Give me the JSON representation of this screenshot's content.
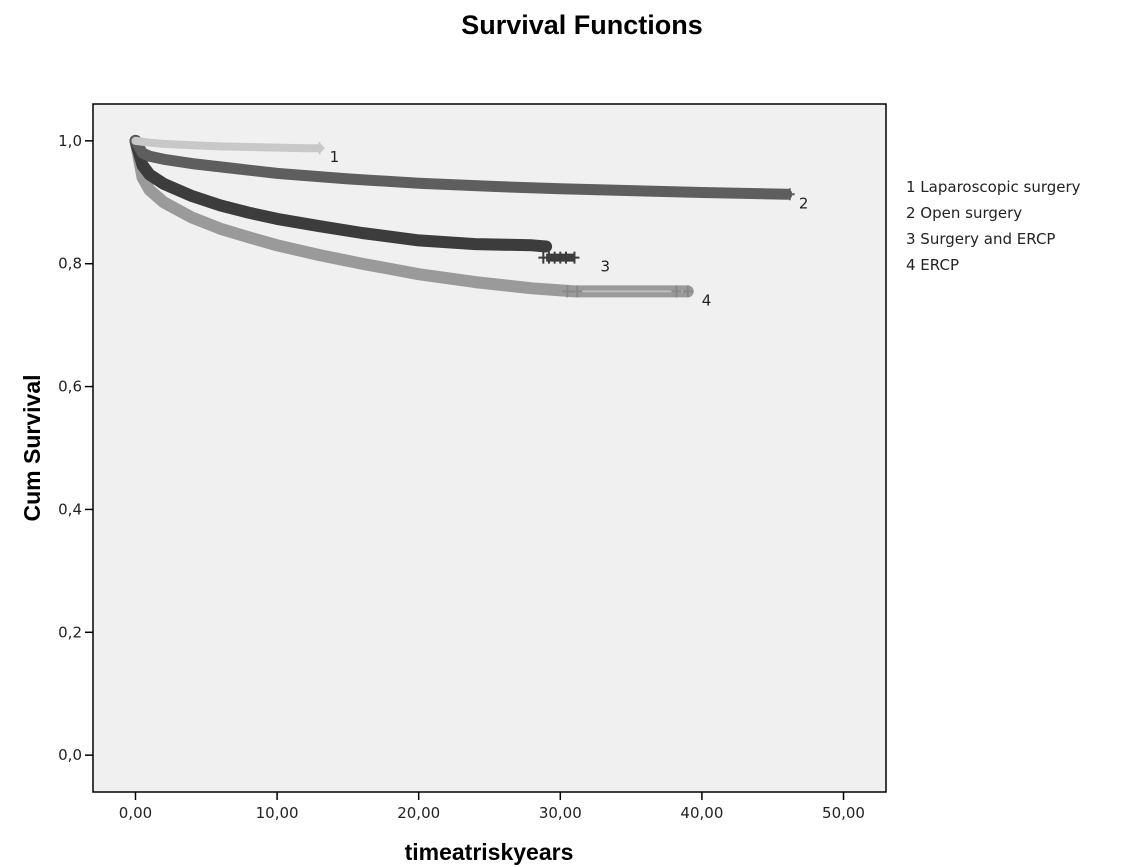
{
  "chart_data": {
    "type": "line",
    "title": "Survival Functions",
    "xlabel": "timeatriskyears",
    "ylabel": "Cum Survival",
    "xlim": [
      -3,
      53
    ],
    "ylim": [
      -0.06,
      1.06
    ],
    "x_ticks": [
      0,
      10,
      20,
      30,
      40,
      50
    ],
    "x_tick_labels": [
      "0,00",
      "10,00",
      "20,00",
      "30,00",
      "40,00",
      "50,00"
    ],
    "y_ticks": [
      0.0,
      0.2,
      0.4,
      0.6,
      0.8,
      1.0
    ],
    "y_tick_labels": [
      "0,0",
      "0,2",
      "0,4",
      "0,6",
      "0,8",
      "1,0"
    ],
    "grid": false,
    "legend_position": "right",
    "series": [
      {
        "name": "1 Laparoscopic surgery",
        "end_label": "1",
        "color": "#c8c8c8",
        "x": [
          0,
          1,
          2,
          4,
          6,
          8,
          10,
          12,
          13
        ],
        "y": [
          1.0,
          0.997,
          0.995,
          0.993,
          0.991,
          0.99,
          0.989,
          0.988,
          0.988
        ],
        "censored_x": [
          13.0
        ]
      },
      {
        "name": "2 Open surgery",
        "end_label": "2",
        "color": "#5e5e5e",
        "x": [
          0,
          0.5,
          1,
          2,
          4,
          7,
          10,
          15,
          20,
          25,
          30,
          35,
          40,
          46
        ],
        "y": [
          1.0,
          0.98,
          0.975,
          0.97,
          0.963,
          0.955,
          0.947,
          0.938,
          0.931,
          0.926,
          0.922,
          0.919,
          0.916,
          0.913
        ],
        "censored_x": [
          46.2
        ]
      },
      {
        "name": "3 Surgery and ERCP",
        "end_label": "3",
        "color": "#3c3c3c",
        "x": [
          0,
          0.5,
          1,
          2,
          4,
          6,
          8,
          10,
          13,
          16,
          20,
          24,
          28,
          29
        ],
        "y": [
          1.0,
          0.96,
          0.945,
          0.93,
          0.91,
          0.895,
          0.883,
          0.873,
          0.861,
          0.85,
          0.838,
          0.832,
          0.83,
          0.828
        ],
        "tail_x": [
          29,
          31
        ],
        "tail_y": [
          0.81,
          0.81
        ],
        "censored_x": [
          28.8,
          29.2,
          29.6,
          30.0,
          30.4,
          31.0
        ]
      },
      {
        "name": "4 ERCP",
        "end_label": "4",
        "color": "#9a9a9a",
        "x": [
          0,
          0.5,
          1,
          2,
          4,
          6,
          8,
          10,
          13,
          16,
          20,
          24,
          28,
          31,
          39
        ],
        "y": [
          1.0,
          0.94,
          0.92,
          0.9,
          0.875,
          0.857,
          0.843,
          0.83,
          0.814,
          0.8,
          0.783,
          0.77,
          0.76,
          0.755,
          0.755
        ],
        "censored_x": [
          30.5,
          31.2,
          38.2,
          39.0
        ]
      }
    ]
  }
}
